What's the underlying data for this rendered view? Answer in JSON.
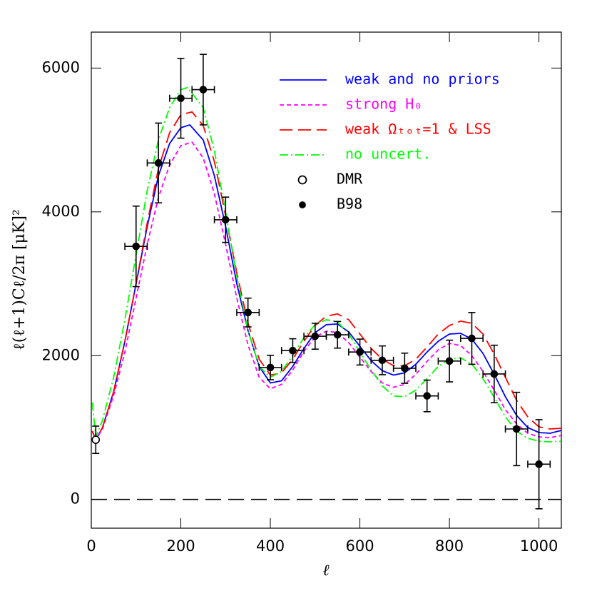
{
  "chart_data": {
    "type": "line",
    "x_label": "ℓ",
    "y_label": "ℓ(ℓ+1)Cℓ/2π  [μK]²",
    "xlim": [
      0,
      1050
    ],
    "ylim": [
      -400,
      6500
    ],
    "xticks": [
      0,
      200,
      400,
      600,
      800,
      1000
    ],
    "yticks": [
      0,
      2000,
      4000,
      6000
    ],
    "reference_line": 0,
    "series": [
      {
        "name": "weak and no priors",
        "color": "#0000ff",
        "dash": "none",
        "x": [
          2,
          10,
          25,
          50,
          75,
          100,
          125,
          150,
          175,
          200,
          220,
          250,
          275,
          300,
          325,
          350,
          375,
          400,
          425,
          450,
          475,
          500,
          525,
          550,
          575,
          600,
          625,
          650,
          675,
          700,
          725,
          750,
          775,
          800,
          825,
          850,
          875,
          900,
          925,
          950,
          975,
          1000,
          1025,
          1050
        ],
        "values": [
          950,
          830,
          1000,
          1500,
          2200,
          3000,
          3800,
          4500,
          4950,
          5170,
          5210,
          5000,
          4500,
          3800,
          3000,
          2350,
          1850,
          1620,
          1650,
          1850,
          2100,
          2320,
          2430,
          2440,
          2330,
          2130,
          1930,
          1790,
          1730,
          1760,
          1880,
          2050,
          2200,
          2300,
          2310,
          2230,
          2030,
          1740,
          1430,
          1170,
          1000,
          930,
          920,
          960
        ]
      },
      {
        "name": "strong H₀",
        "color": "#ff00ff",
        "dash": "6,4",
        "x": [
          2,
          10,
          25,
          50,
          75,
          100,
          125,
          150,
          175,
          200,
          225,
          250,
          275,
          300,
          325,
          350,
          375,
          400,
          425,
          450,
          475,
          500,
          525,
          550,
          575,
          600,
          625,
          650,
          675,
          700,
          725,
          750,
          775,
          800,
          825,
          850,
          875,
          900,
          925,
          950,
          975,
          1000,
          1025,
          1050
        ],
        "values": [
          950,
          830,
          980,
          1450,
          2050,
          2800,
          3550,
          4200,
          4650,
          4920,
          4970,
          4750,
          4250,
          3550,
          2800,
          2150,
          1700,
          1540,
          1600,
          1800,
          2060,
          2260,
          2340,
          2320,
          2180,
          1980,
          1780,
          1620,
          1560,
          1600,
          1740,
          1920,
          2080,
          2170,
          2140,
          2000,
          1780,
          1520,
          1250,
          1050,
          920,
          870,
          860,
          890
        ]
      },
      {
        "name": "weak Ωₜₒₜ=1 & LSS",
        "color": "#ff0000",
        "dash": "18,8",
        "x": [
          2,
          10,
          25,
          50,
          75,
          100,
          125,
          150,
          175,
          200,
          225,
          250,
          275,
          300,
          325,
          350,
          375,
          400,
          425,
          450,
          475,
          500,
          525,
          550,
          575,
          600,
          625,
          650,
          675,
          700,
          725,
          750,
          775,
          800,
          825,
          850,
          875,
          900,
          925,
          950,
          975,
          1000,
          1025,
          1050
        ],
        "values": [
          950,
          830,
          1000,
          1500,
          2200,
          3000,
          3850,
          4600,
          5100,
          5350,
          5390,
          5200,
          4700,
          3950,
          3150,
          2450,
          1950,
          1730,
          1760,
          1950,
          2200,
          2420,
          2550,
          2580,
          2500,
          2300,
          2100,
          1950,
          1860,
          1860,
          1950,
          2120,
          2300,
          2420,
          2480,
          2450,
          2300,
          2020,
          1700,
          1380,
          1150,
          1010,
          980,
          990
        ]
      },
      {
        "name": "no uncert.",
        "color": "#00ff00",
        "dash": "12,4,2,4",
        "x": [
          2,
          10,
          25,
          50,
          75,
          100,
          125,
          150,
          175,
          200,
          215,
          250,
          275,
          300,
          325,
          350,
          375,
          400,
          425,
          450,
          475,
          500,
          525,
          550,
          575,
          600,
          625,
          650,
          675,
          700,
          725,
          750,
          775,
          800,
          825,
          850,
          875,
          900,
          925,
          950,
          975,
          1000,
          1025,
          1050
        ],
        "values": [
          1350,
          870,
          1100,
          1700,
          2500,
          3400,
          4300,
          5000,
          5450,
          5700,
          5730,
          5450,
          4850,
          4000,
          3100,
          2350,
          1850,
          1700,
          1780,
          2000,
          2250,
          2430,
          2500,
          2470,
          2300,
          2050,
          1800,
          1580,
          1440,
          1430,
          1520,
          1680,
          1850,
          1950,
          1970,
          1880,
          1680,
          1420,
          1150,
          950,
          850,
          810,
          800,
          810
        ]
      }
    ],
    "points": [
      {
        "name": "DMR",
        "filled": false,
        "x": [
          10
        ],
        "values": [
          830
        ],
        "errors": [
          190
        ]
      },
      {
        "name": "B98",
        "filled": true,
        "x": [
          100,
          150,
          200,
          250,
          300,
          350,
          400,
          450,
          500,
          550,
          600,
          650,
          700,
          750,
          800,
          850,
          900,
          950,
          1000
        ],
        "values": [
          3520,
          4680,
          5580,
          5700,
          3890,
          2600,
          1835,
          2070,
          2270,
          2290,
          2050,
          1935,
          1825,
          1440,
          1925,
          2240,
          1745,
          980,
          490
        ],
        "errors": [
          560,
          555,
          555,
          490,
          315,
          200,
          170,
          165,
          180,
          185,
          180,
          200,
          210,
          220,
          290,
          360,
          400,
          510,
          620
        ],
        "xerrors": [
          25,
          25,
          25,
          25,
          25,
          25,
          25,
          25,
          25,
          25,
          25,
          25,
          25,
          25,
          25,
          25,
          25,
          25,
          25
        ]
      }
    ]
  }
}
